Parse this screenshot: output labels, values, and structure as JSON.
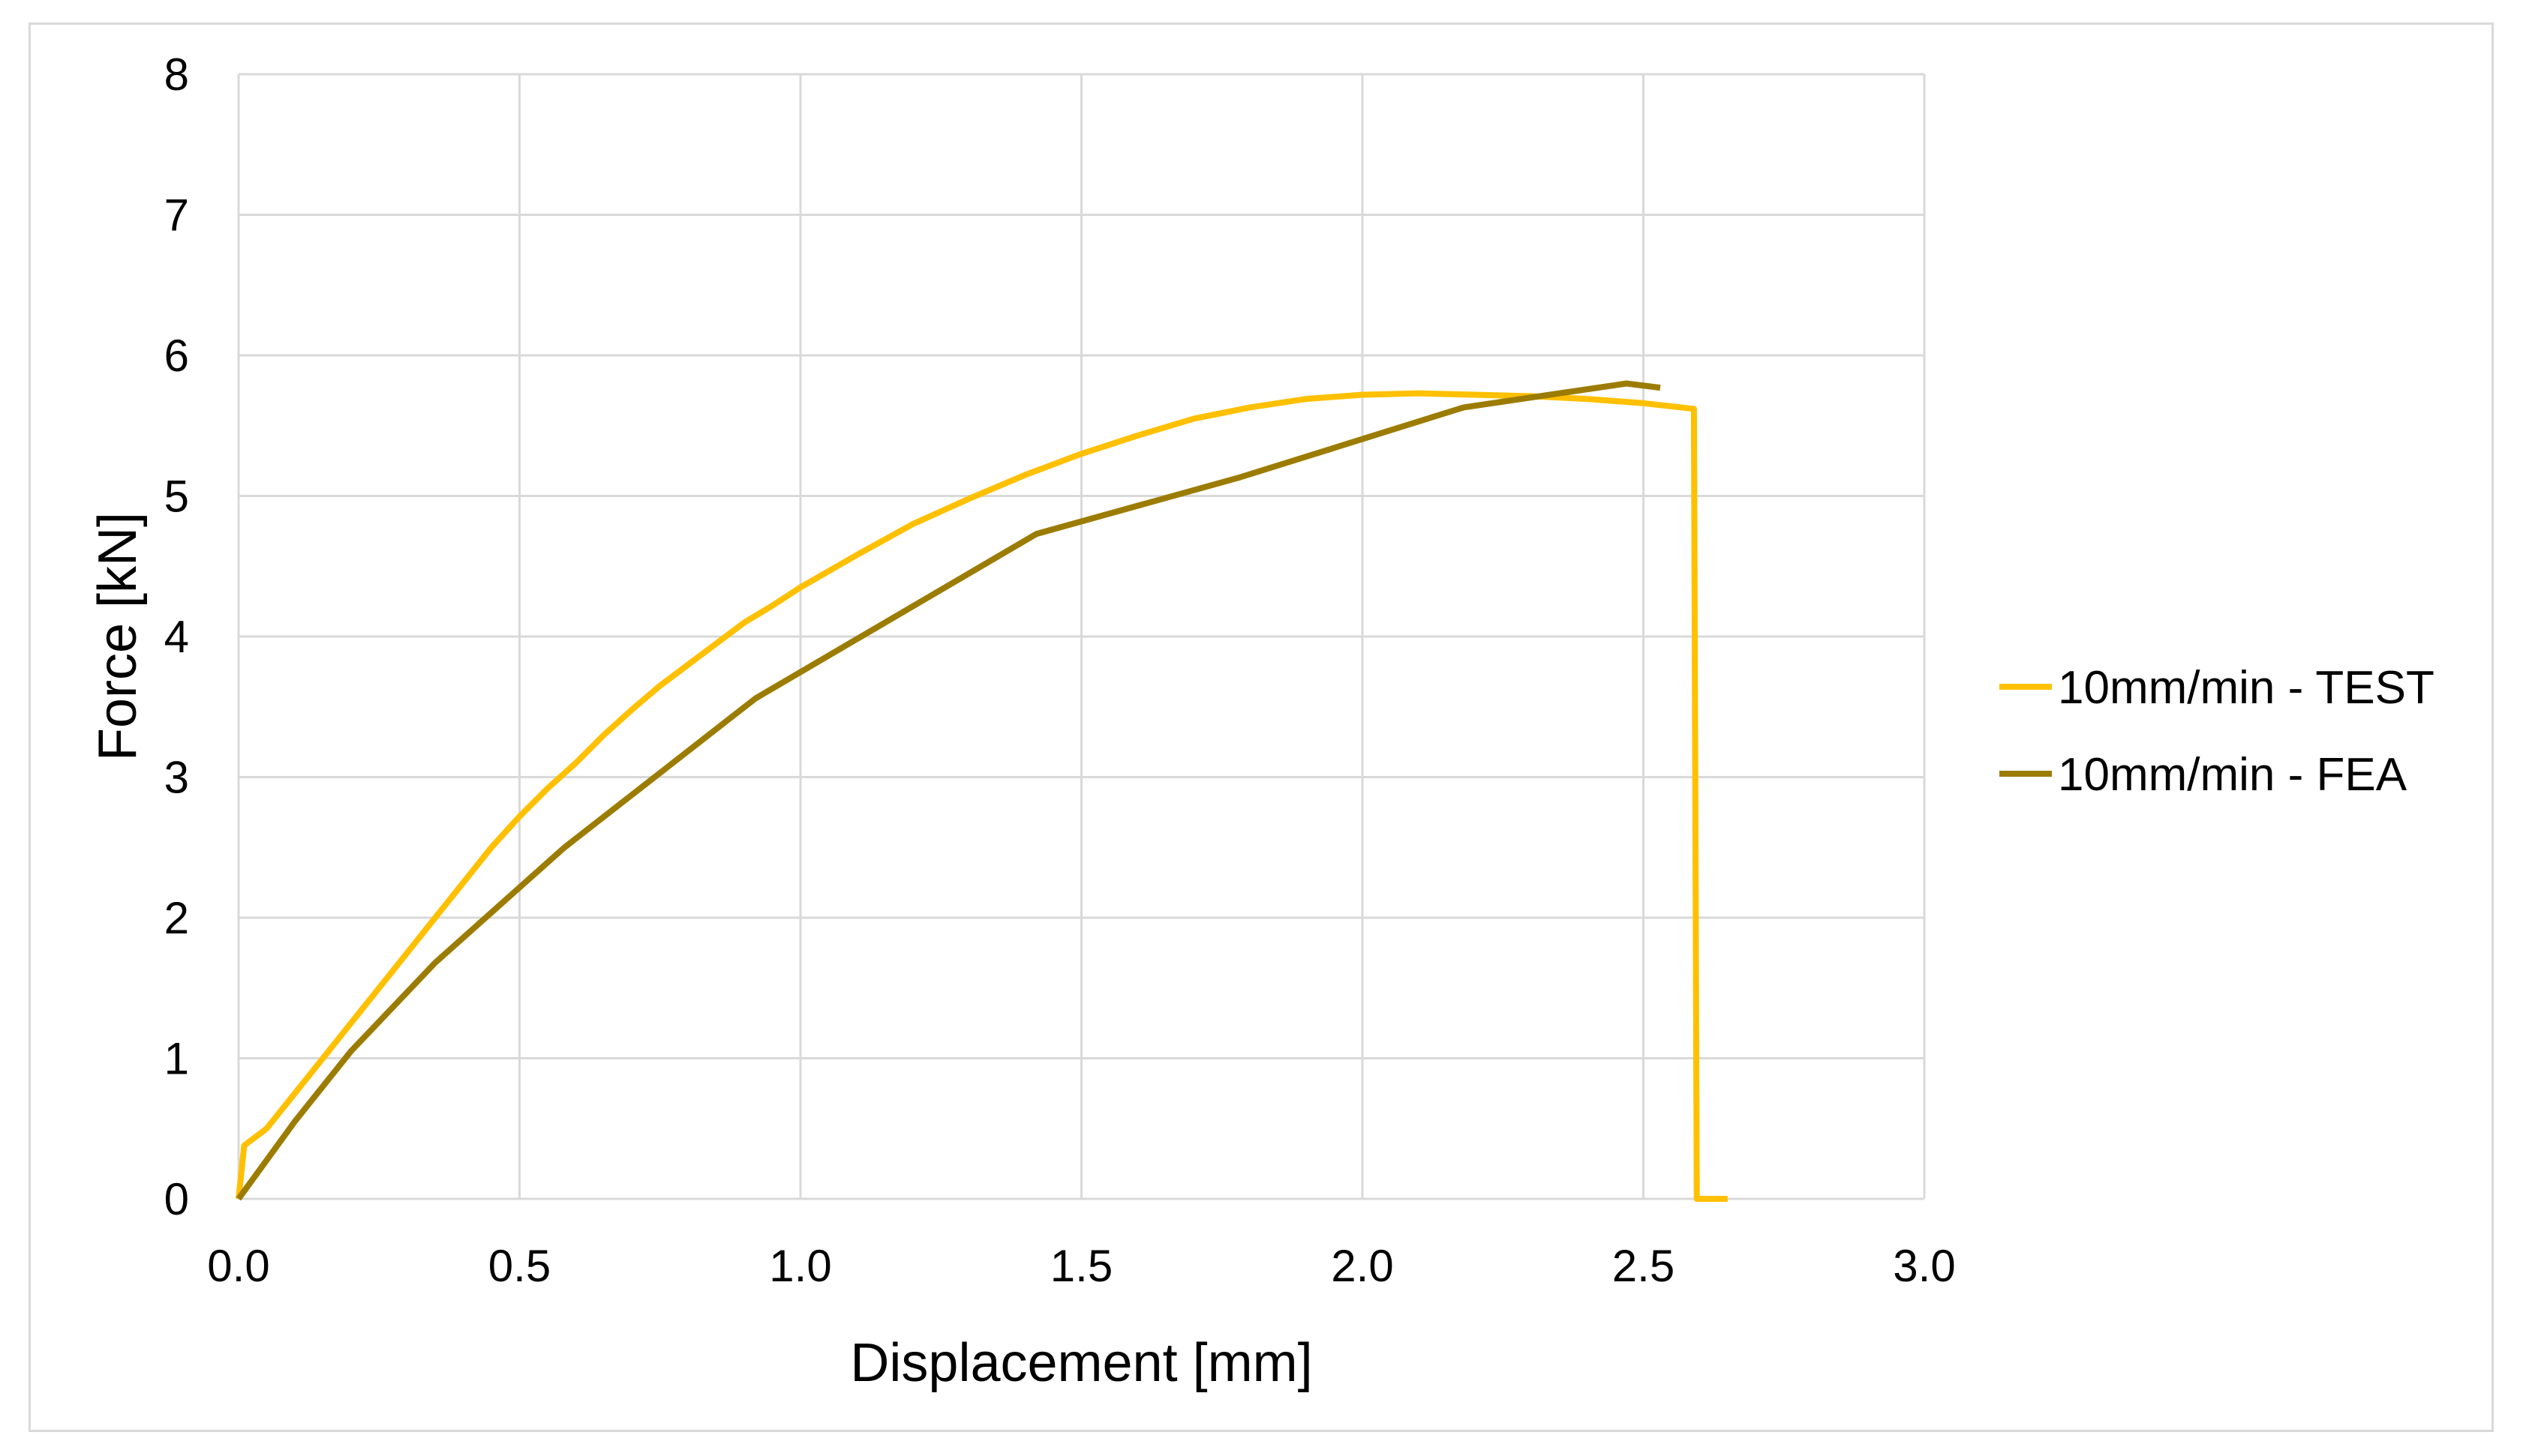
{
  "chart_data": {
    "type": "line",
    "title": "",
    "xlabel": "Displacement [mm]",
    "ylabel": "Force [kN]",
    "xlim": [
      0,
      3.0
    ],
    "ylim": [
      0,
      8
    ],
    "x_ticks": [
      0.0,
      0.5,
      1.0,
      1.5,
      2.0,
      2.5,
      3.0
    ],
    "x_tick_labels": [
      "0.0",
      "0.5",
      "1.0",
      "1.5",
      "2.0",
      "2.5",
      "3.0"
    ],
    "y_ticks": [
      0,
      1,
      2,
      3,
      4,
      5,
      6,
      7,
      8
    ],
    "y_tick_labels": [
      "0",
      "1",
      "2",
      "3",
      "4",
      "5",
      "6",
      "7",
      "8"
    ],
    "grid": true,
    "legend_position": "right",
    "series": [
      {
        "name": "10mm/min - TEST",
        "color": "#FFC000",
        "x": [
          0,
          0.01,
          0.05,
          0.1,
          0.15,
          0.2,
          0.25,
          0.3,
          0.35,
          0.4,
          0.45,
          0.5,
          0.55,
          0.6,
          0.65,
          0.7,
          0.75,
          0.8,
          0.85,
          0.9,
          0.95,
          1.0,
          1.1,
          1.2,
          1.3,
          1.4,
          1.5,
          1.6,
          1.7,
          1.8,
          1.9,
          2.0,
          2.1,
          2.2,
          2.3,
          2.4,
          2.5,
          2.59,
          2.595,
          2.6,
          2.65
        ],
        "y": [
          0,
          0.38,
          0.5,
          0.75,
          1.0,
          1.25,
          1.5,
          1.75,
          2.0,
          2.25,
          2.5,
          2.72,
          2.92,
          3.1,
          3.3,
          3.48,
          3.65,
          3.8,
          3.95,
          4.1,
          4.22,
          4.35,
          4.58,
          4.8,
          4.98,
          5.15,
          5.3,
          5.43,
          5.55,
          5.63,
          5.69,
          5.72,
          5.73,
          5.72,
          5.71,
          5.69,
          5.66,
          5.62,
          0.0,
          0.0,
          0.0
        ]
      },
      {
        "name": "10mm/min - FEA",
        "color": "#9C7C00",
        "x": [
          0,
          0.1,
          0.2,
          0.35,
          0.58,
          0.92,
          1.42,
          1.78,
          2.18,
          2.47,
          2.53
        ],
        "y": [
          0,
          0.55,
          1.05,
          1.68,
          2.5,
          3.56,
          4.73,
          5.13,
          5.63,
          5.8,
          5.77
        ]
      }
    ]
  }
}
